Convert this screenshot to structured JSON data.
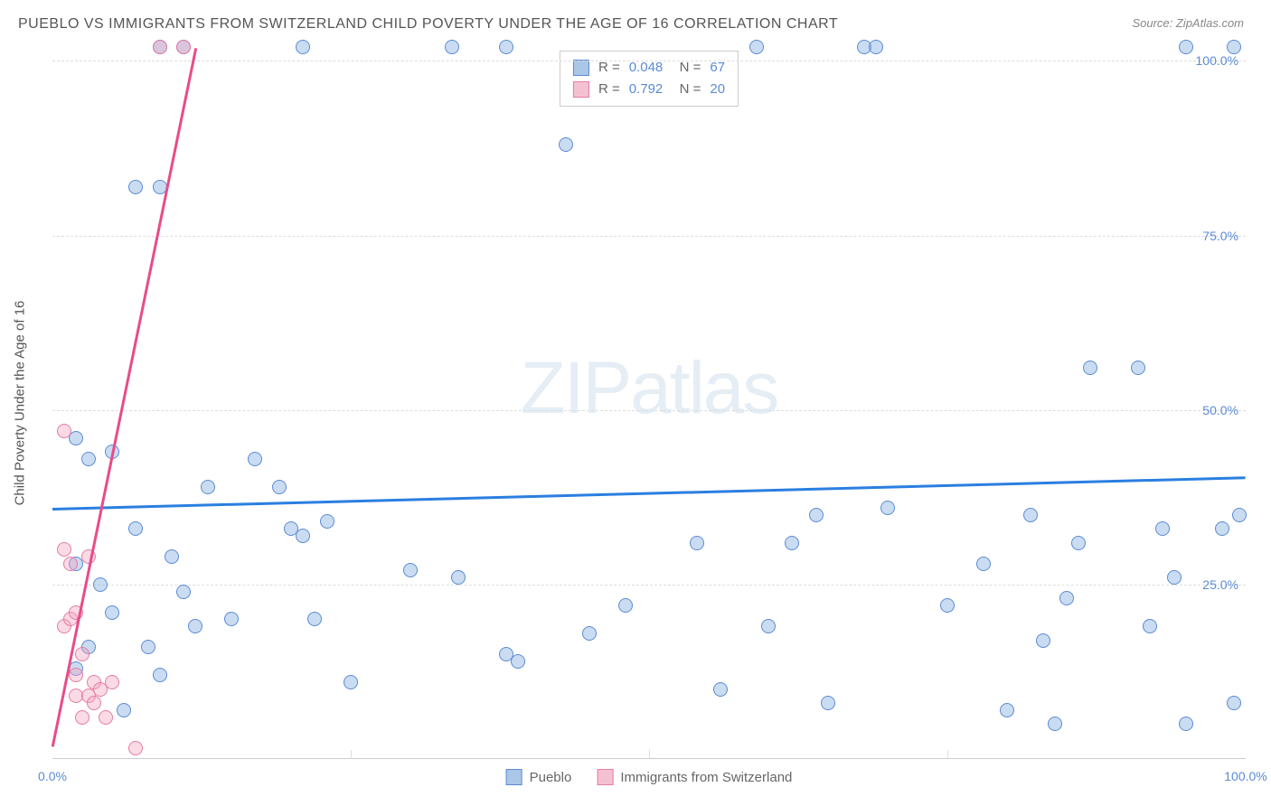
{
  "title": "PUEBLO VS IMMIGRANTS FROM SWITZERLAND CHILD POVERTY UNDER THE AGE OF 16 CORRELATION CHART",
  "source": "Source: ZipAtlas.com",
  "watermark_a": "ZIP",
  "watermark_b": "atlas",
  "y_axis_title": "Child Poverty Under the Age of 16",
  "chart": {
    "type": "scatter",
    "xlim": [
      0,
      100
    ],
    "ylim": [
      0,
      102
    ],
    "x_ticks": [
      0,
      25,
      50,
      75,
      100
    ],
    "y_ticks": [
      25,
      50,
      75,
      100
    ],
    "x_tick_labels": [
      "0.0%",
      "",
      "",
      "",
      "100.0%"
    ],
    "y_tick_labels": [
      "25.0%",
      "50.0%",
      "75.0%",
      "100.0%"
    ],
    "grid_color": "#dddddd",
    "background": "#ffffff",
    "series": [
      {
        "name": "Pueblo",
        "color_fill": "rgba(137,178,224,0.45)",
        "color_stroke": "#5b8bd4",
        "legend_color": "#aac7e8",
        "r": 0.048,
        "n": 67,
        "trend": {
          "x1": 0,
          "y1": 36.0,
          "x2": 100,
          "y2": 40.5,
          "color": "#2a7fe0"
        },
        "points": [
          [
            21,
            102
          ],
          [
            33.5,
            102
          ],
          [
            38,
            102
          ],
          [
            43,
            88
          ],
          [
            59,
            102
          ],
          [
            68,
            102
          ],
          [
            69,
            102
          ],
          [
            95,
            102
          ],
          [
            99,
            102
          ],
          [
            9,
            102
          ],
          [
            11,
            102
          ],
          [
            2,
            46
          ],
          [
            3,
            43
          ],
          [
            5,
            44
          ],
          [
            7,
            33
          ],
          [
            7,
            82
          ],
          [
            9,
            82
          ],
          [
            2,
            13
          ],
          [
            2,
            28
          ],
          [
            3,
            16
          ],
          [
            4,
            25
          ],
          [
            5,
            21
          ],
          [
            6,
            7
          ],
          [
            8,
            16
          ],
          [
            9,
            12
          ],
          [
            10,
            29
          ],
          [
            11,
            24
          ],
          [
            12,
            19
          ],
          [
            13,
            39
          ],
          [
            15,
            20
          ],
          [
            17,
            43
          ],
          [
            19,
            39
          ],
          [
            20,
            33
          ],
          [
            21,
            32
          ],
          [
            22,
            20
          ],
          [
            23,
            34
          ],
          [
            25,
            11
          ],
          [
            30,
            27
          ],
          [
            34,
            26
          ],
          [
            38,
            15
          ],
          [
            39,
            14
          ],
          [
            45,
            18
          ],
          [
            48,
            22
          ],
          [
            54,
            31
          ],
          [
            56,
            10
          ],
          [
            60,
            19
          ],
          [
            62,
            31
          ],
          [
            64,
            35
          ],
          [
            65,
            8
          ],
          [
            70,
            36
          ],
          [
            75,
            22
          ],
          [
            78,
            28
          ],
          [
            80,
            7
          ],
          [
            82,
            35
          ],
          [
            83,
            17
          ],
          [
            84,
            5
          ],
          [
            85,
            23
          ],
          [
            86,
            31
          ],
          [
            87,
            56
          ],
          [
            91,
            56
          ],
          [
            92,
            19
          ],
          [
            93,
            33
          ],
          [
            94,
            26
          ],
          [
            95,
            5
          ],
          [
            98,
            33
          ],
          [
            99,
            8
          ],
          [
            99.5,
            35
          ]
        ]
      },
      {
        "name": "Immigrants from Switzerland",
        "color_fill": "rgba(242,162,190,0.40)",
        "color_stroke": "#e67ca3",
        "legend_color": "#f4c1d3",
        "r": 0.792,
        "n": 20,
        "trend": {
          "x1": 0,
          "y1": 2,
          "x2": 12,
          "y2": 102,
          "color": "#e84c88"
        },
        "points": [
          [
            1,
            47
          ],
          [
            1,
            30
          ],
          [
            1,
            19
          ],
          [
            1.5,
            20
          ],
          [
            1.5,
            28
          ],
          [
            2,
            9
          ],
          [
            2,
            12
          ],
          [
            2,
            21
          ],
          [
            2.5,
            15
          ],
          [
            2.5,
            6
          ],
          [
            3,
            9
          ],
          [
            3,
            29
          ],
          [
            3.5,
            11
          ],
          [
            3.5,
            8
          ],
          [
            4,
            10
          ],
          [
            4.5,
            6
          ],
          [
            5,
            11
          ],
          [
            7,
            1.5
          ],
          [
            9,
            102
          ],
          [
            11,
            102
          ]
        ]
      }
    ],
    "legend_bottom": [
      {
        "label": "Pueblo",
        "fill": "#aac7e8",
        "stroke": "#5b8bd4"
      },
      {
        "label": "Immigrants from Switzerland",
        "fill": "#f4c1d3",
        "stroke": "#e67ca3"
      }
    ]
  }
}
